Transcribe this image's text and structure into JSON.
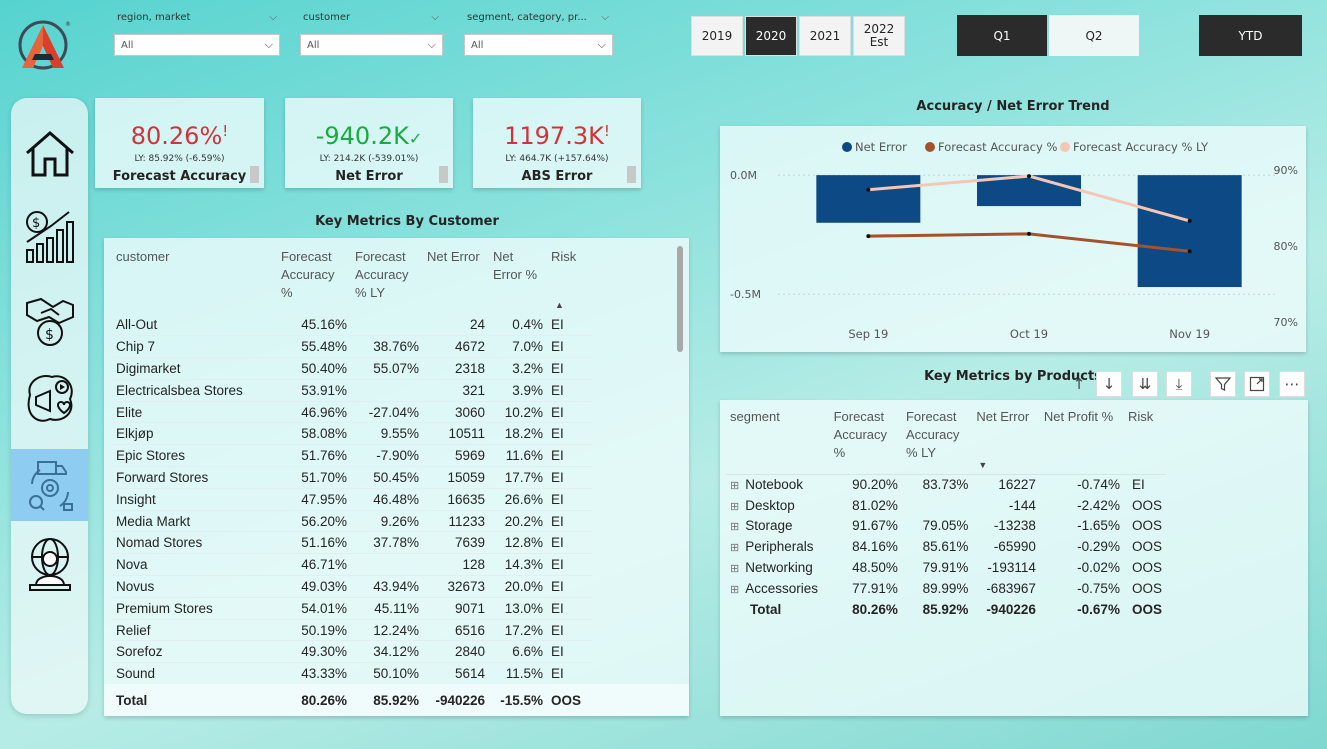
{
  "filters": [
    {
      "title": "region, market",
      "value": "All"
    },
    {
      "title": "customer",
      "value": "All"
    },
    {
      "title": "segment, category, pr...",
      "value": "All"
    }
  ],
  "years": [
    "2019",
    "2020",
    "2021",
    "2022\nEst"
  ],
  "selected_year": "2020",
  "quarters": [
    "Q1",
    "Q2"
  ],
  "ytd": "YTD",
  "nav_icons": [
    "home-icon",
    "finance-growth-icon",
    "deal-money-icon",
    "marketing-icon",
    "supply-chain-icon",
    "global-executive-icon"
  ],
  "kpis": [
    {
      "value": "80.26%",
      "mark": "!",
      "ly": "LY: 85.92% (-6.59%)",
      "label": "Forecast Accuracy",
      "color": "#d13438"
    },
    {
      "value": "-940.2K",
      "mark": "✓",
      "ly": "LY: 214.2K (-539.01%)",
      "label": "Net Error",
      "color": "#1aab40"
    },
    {
      "value": "1197.3K",
      "mark": "!",
      "ly": "LY: 464.7K (+157.64%)",
      "label": "ABS Error",
      "color": "#d13438"
    }
  ],
  "customer_table": {
    "title": "Key Metrics By Customer",
    "headers": [
      "customer",
      "Forecast Accuracy %",
      "Forecast Accuracy % LY",
      "Net Error",
      "Net Error %",
      "Risk"
    ],
    "rows": [
      [
        "All-Out",
        "45.16%",
        "",
        "24",
        "0.4%",
        "EI"
      ],
      [
        "Chip 7",
        "55.48%",
        "38.76%",
        "4672",
        "7.0%",
        "EI"
      ],
      [
        "Digimarket",
        "50.40%",
        "55.07%",
        "2318",
        "3.2%",
        "EI"
      ],
      [
        "Electricalsbea Stores",
        "53.91%",
        "",
        "321",
        "3.9%",
        "EI"
      ],
      [
        "Elite",
        "46.96%",
        "-27.04%",
        "3060",
        "10.2%",
        "EI"
      ],
      [
        "Elkjøp",
        "58.08%",
        "9.55%",
        "10511",
        "18.2%",
        "EI"
      ],
      [
        "Epic Stores",
        "51.76%",
        "-7.90%",
        "5969",
        "11.6%",
        "EI"
      ],
      [
        "Forward Stores",
        "51.70%",
        "50.45%",
        "15059",
        "17.7%",
        "EI"
      ],
      [
        "Insight",
        "47.95%",
        "46.48%",
        "16635",
        "26.6%",
        "EI"
      ],
      [
        "Media Markt",
        "56.20%",
        "9.26%",
        "11233",
        "20.2%",
        "EI"
      ],
      [
        "Nomad Stores",
        "51.16%",
        "37.78%",
        "7639",
        "12.8%",
        "EI"
      ],
      [
        "Nova",
        "46.71%",
        "",
        "128",
        "14.3%",
        "EI"
      ],
      [
        "Novus",
        "49.03%",
        "43.94%",
        "32673",
        "20.0%",
        "EI"
      ],
      [
        "Premium Stores",
        "54.01%",
        "45.11%",
        "9071",
        "13.0%",
        "EI"
      ],
      [
        "Relief",
        "50.19%",
        "12.24%",
        "6516",
        "17.2%",
        "EI"
      ],
      [
        "Sorefoz",
        "49.30%",
        "34.12%",
        "2840",
        "6.6%",
        "EI"
      ],
      [
        "Sound",
        "43.33%",
        "50.10%",
        "5614",
        "11.5%",
        "EI"
      ]
    ],
    "total": [
      "Total",
      "80.26%",
      "85.92%",
      "-940226",
      "-15.5%",
      "OOS"
    ]
  },
  "product_table": {
    "title": "Key Metrics by Products",
    "headers": [
      "segment",
      "Forecast Accuracy %",
      "Forecast Accuracy % LY",
      "Net Error",
      "Net Profit %",
      "Risk"
    ],
    "rows": [
      [
        "Notebook",
        "90.20%",
        "83.73%",
        "16227",
        "-0.74%",
        "EI"
      ],
      [
        "Desktop",
        "81.02%",
        "",
        "-144",
        "-2.42%",
        "OOS"
      ],
      [
        "Storage",
        "91.67%",
        "79.05%",
        "-13238",
        "-1.65%",
        "OOS"
      ],
      [
        "Peripherals",
        "84.16%",
        "85.61%",
        "-65990",
        "-0.29%",
        "OOS"
      ],
      [
        "Networking",
        "48.50%",
        "79.91%",
        "-193114",
        "-0.02%",
        "OOS"
      ],
      [
        "Accessories",
        "77.91%",
        "89.99%",
        "-683967",
        "-0.75%",
        "OOS"
      ]
    ],
    "total": [
      "Total",
      "80.26%",
      "85.92%",
      "-940226",
      "-0.67%",
      "OOS"
    ],
    "expand_mark": "⊞",
    "toolbar_icons": [
      "drill-up-icon",
      "drill-down-icon",
      "expand-all-down-icon",
      "expand-hierarchy-icon",
      "filter-icon",
      "focus-mode-icon",
      "more-options-icon"
    ]
  },
  "chart_data": {
    "type": "bar",
    "title": "Accuracy / Net Error Trend",
    "categories": [
      "Sep 19",
      "Oct 19",
      "Nov 19"
    ],
    "series": [
      {
        "name": "Net Error",
        "kind": "bar",
        "axis": "left",
        "color": "#0d4a85",
        "values": [
          -0.2,
          -0.13,
          -0.47
        ]
      },
      {
        "name": "Forecast Accuracy %",
        "kind": "line",
        "axis": "right",
        "color": "#a5522a",
        "values": [
          81.3,
          81.6,
          79.3
        ]
      },
      {
        "name": "Forecast Accuracy % LY",
        "kind": "line",
        "axis": "right",
        "color": "#f4c7b4",
        "values": [
          87.4,
          89.2,
          83.3
        ]
      }
    ],
    "y_left": {
      "ticks": [
        "0.0M",
        "-0.5M"
      ],
      "tick_values": [
        0,
        -0.5
      ],
      "range": [
        -0.6,
        0.03
      ]
    },
    "y_right": {
      "ticks": [
        "90%",
        "80%",
        "70%"
      ],
      "tick_values": [
        90,
        80,
        70
      ],
      "range": [
        70,
        90
      ]
    },
    "legend_position": "top-center",
    "grid": true
  }
}
